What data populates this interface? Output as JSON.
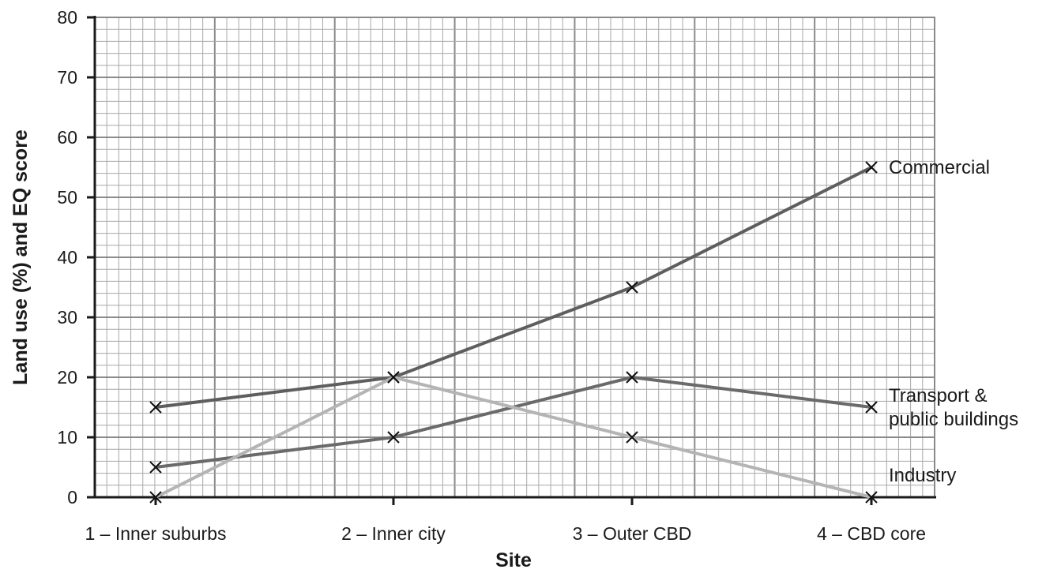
{
  "chart_data": {
    "type": "line",
    "title": "",
    "xlabel": "Site",
    "ylabel": "Land use (%) and EQ score",
    "categories": [
      "1 – Inner suburbs",
      "2 – Inner city",
      "3 – Outer CBD",
      "4 – CBD core"
    ],
    "ylim": [
      0,
      80
    ],
    "yticks": [
      0,
      10,
      20,
      30,
      40,
      50,
      60,
      70,
      80
    ],
    "grid": true,
    "legend": "none",
    "series": [
      {
        "name": "Commercial",
        "label_lines": [
          "Commercial"
        ],
        "values": [
          15,
          20,
          35,
          55
        ],
        "color": "#5e5e5e"
      },
      {
        "name": "Transport & public buildings",
        "label_lines": [
          "Transport &",
          "public buildings"
        ],
        "values": [
          5,
          10,
          20,
          15
        ],
        "color": "#6a6a6a"
      },
      {
        "name": "Industry",
        "label_lines": [
          "Industry"
        ],
        "values": [
          0,
          20,
          10,
          0
        ],
        "color": "#b4b4b4"
      }
    ]
  }
}
